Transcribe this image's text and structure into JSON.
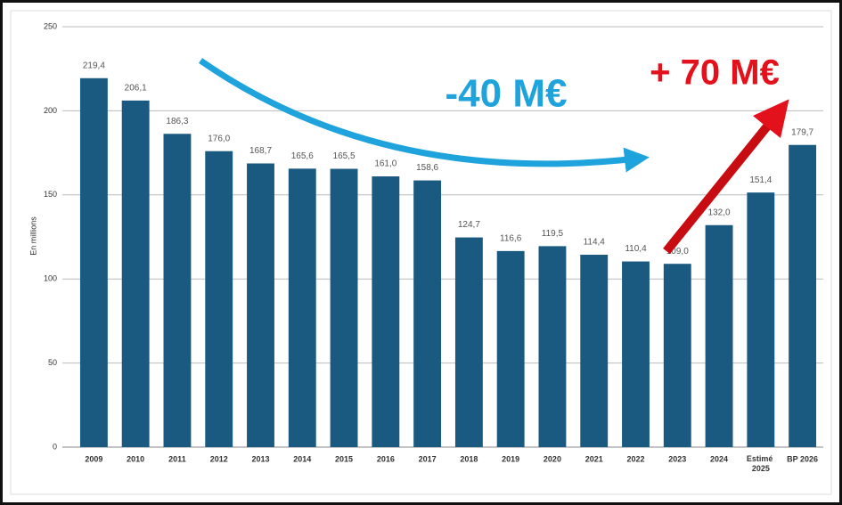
{
  "chart_data": {
    "type": "bar",
    "y_label": "En millions",
    "categories": [
      "2009",
      "2010",
      "2011",
      "2012",
      "2013",
      "2014",
      "2015",
      "2016",
      "2017",
      "2018",
      "2019",
      "2020",
      "2021",
      "2022",
      "2023",
      "2024",
      "Estimé 2025",
      "BP 2026"
    ],
    "values": [
      219.4,
      206.1,
      186.3,
      176.0,
      168.7,
      165.6,
      165.5,
      161.0,
      158.6,
      124.7,
      116.6,
      119.5,
      114.4,
      110.4,
      109.0,
      132.0,
      151.4,
      179.7
    ],
    "value_labels": [
      "219,4",
      "206,1",
      "186,3",
      "176,0",
      "168,7",
      "165,6",
      "165,5",
      "161,0",
      "158,6",
      "124,7",
      "116,6",
      "119,5",
      "114,4",
      "110,4",
      "109,0",
      "132,0",
      "151,4",
      "179,7"
    ],
    "color": "#1b5a80",
    "ylim": [
      0,
      250
    ],
    "yticks": [
      0,
      50,
      100,
      150,
      200,
      250
    ],
    "grid": true,
    "annotations": [
      {
        "text": "-40 M€",
        "color": "#1ea3dc"
      },
      {
        "text": "+ 70 M€",
        "color": "#e3111b"
      }
    ]
  }
}
